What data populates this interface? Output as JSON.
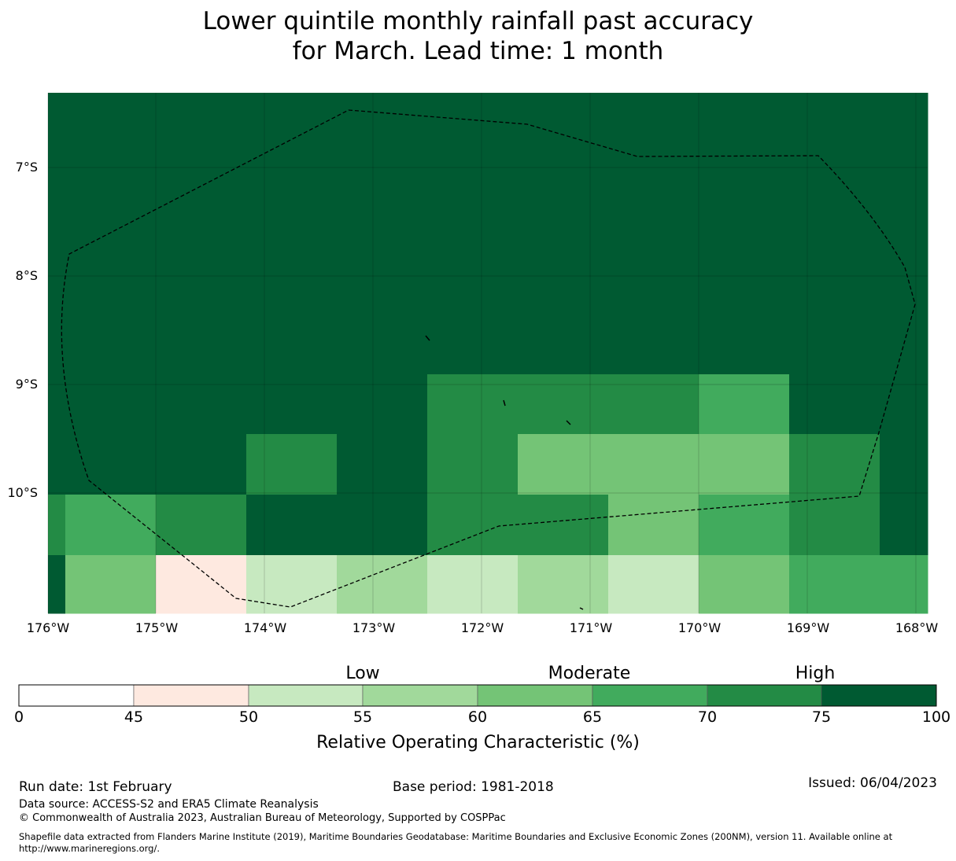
{
  "title": {
    "line1": "Lower quintile monthly rainfall past accuracy",
    "line2": "for March. Lead time: 1 month"
  },
  "map": {
    "lat_labels": [
      "7°S",
      "8°S",
      "9°S",
      "10°S"
    ],
    "lon_labels": [
      "176°W",
      "175°W",
      "174°W",
      "173°W",
      "172°W",
      "171°W",
      "170°W",
      "169°W",
      "168°W"
    ],
    "boundary_style": "dashed",
    "grid_rows": [
      [
        "75-100",
        "75-100",
        "75-100",
        "75-100",
        "75-100",
        "75-100",
        "75-100",
        "75-100",
        "75-100",
        "75-100",
        "75-100"
      ],
      [
        "75-100",
        "75-100",
        "75-100",
        "75-100",
        "75-100",
        "75-100",
        "75-100",
        "75-100",
        "75-100",
        "75-100",
        "75-100"
      ],
      [
        "75-100",
        "75-100",
        "75-100",
        "75-100",
        "75-100",
        "75-100",
        "75-100",
        "75-100",
        "75-100",
        "75-100",
        "75-100"
      ],
      [
        "75-100",
        "75-100",
        "75-100",
        "75-100",
        "75-100",
        "70-75",
        "70-75",
        "70-75",
        "65-70",
        "75-100",
        "75-100"
      ],
      [
        "75-100",
        "75-100",
        "75-100",
        "70-75",
        "75-100",
        "70-75",
        "60-65",
        "60-65",
        "60-65",
        "70-75",
        "75-100"
      ],
      [
        "70-75",
        "65-70",
        "70-75",
        "75-100",
        "75-100",
        "70-75",
        "70-75",
        "60-65",
        "65-70",
        "70-75",
        "75-100"
      ],
      [
        "75-100",
        "60-65",
        "45-50",
        "50-55",
        "55-60",
        "50-55",
        "55-60",
        "50-55",
        "60-65",
        "65-70",
        "65-70"
      ]
    ]
  },
  "colorbar": {
    "bins": [
      {
        "range": "0-45",
        "color": "#ffffff"
      },
      {
        "range": "45-50",
        "color": "#fee9e0"
      },
      {
        "range": "50-55",
        "color": "#c7e9c0"
      },
      {
        "range": "55-60",
        "color": "#a1d99b"
      },
      {
        "range": "60-65",
        "color": "#74c476"
      },
      {
        "range": "65-70",
        "color": "#41ab5d"
      },
      {
        "range": "70-75",
        "color": "#238b45"
      },
      {
        "range": "75-100",
        "color": "#005a32"
      }
    ],
    "ticks": [
      "0",
      "45",
      "50",
      "55",
      "60",
      "65",
      "70",
      "75",
      "100"
    ],
    "levels": [
      "Low",
      "Moderate",
      "High"
    ],
    "label": "Relative Operating Characteristic (%)"
  },
  "footer": {
    "run_date": "Run date: 1st February",
    "base_period": "Base period: 1981-2018",
    "issued": "Issued: 06/04/2023",
    "data_source": "Data source: ACCESS-S2 and ERA5 Climate Reanalysis",
    "copyright": "© Commonwealth of Australia 2023, Australian Bureau of Meteorology, Supported by COSPPac",
    "shapefile": "Shapefile data extracted from Flanders Marine Institute (2019), Maritime Boundaries Geodatabase: Maritime Boundaries and Exclusive Economic Zones (200NM), version 11. Available online at http://www.marineregions.org/."
  }
}
